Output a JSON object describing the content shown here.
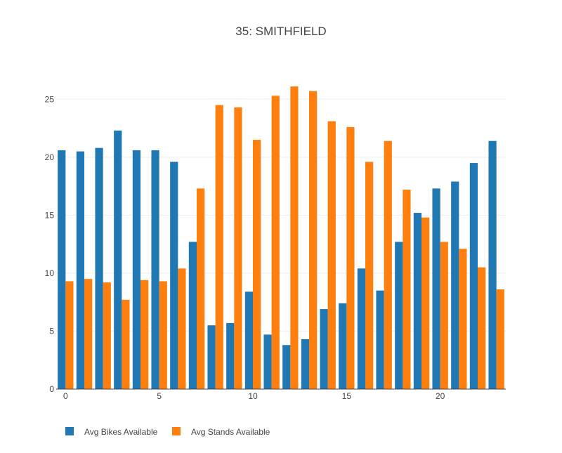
{
  "chart_data": {
    "type": "bar",
    "title": "35: SMITHFIELD",
    "xlabel": "",
    "ylabel": "",
    "x": [
      0,
      1,
      2,
      3,
      4,
      5,
      6,
      7,
      8,
      9,
      10,
      11,
      12,
      13,
      14,
      15,
      16,
      17,
      18,
      19,
      20,
      21,
      22,
      23
    ],
    "x_ticks": [
      0,
      5,
      10,
      15,
      20
    ],
    "y_ticks": [
      0,
      5,
      10,
      15,
      20,
      25
    ],
    "xlim": [
      -0.5,
      23.5
    ],
    "ylim": [
      0,
      27.5
    ],
    "grid": "horizontal",
    "legend_position": "bottom-left",
    "series": [
      {
        "name": "Avg Bikes Available",
        "color": "#1f77b4",
        "values": [
          20.6,
          20.5,
          20.8,
          22.3,
          20.6,
          20.6,
          19.6,
          12.7,
          5.5,
          5.7,
          8.4,
          4.7,
          3.8,
          4.3,
          6.9,
          7.4,
          10.4,
          8.5,
          12.7,
          15.2,
          17.3,
          17.9,
          19.5,
          21.4
        ]
      },
      {
        "name": "Avg Stands Available",
        "color": "#ff7f0e",
        "values": [
          9.3,
          9.5,
          9.2,
          7.7,
          9.4,
          9.3,
          10.4,
          17.3,
          24.5,
          24.3,
          21.5,
          25.3,
          26.1,
          25.7,
          23.1,
          22.6,
          19.6,
          21.4,
          17.2,
          14.8,
          12.7,
          12.1,
          10.5,
          8.6
        ]
      }
    ]
  }
}
